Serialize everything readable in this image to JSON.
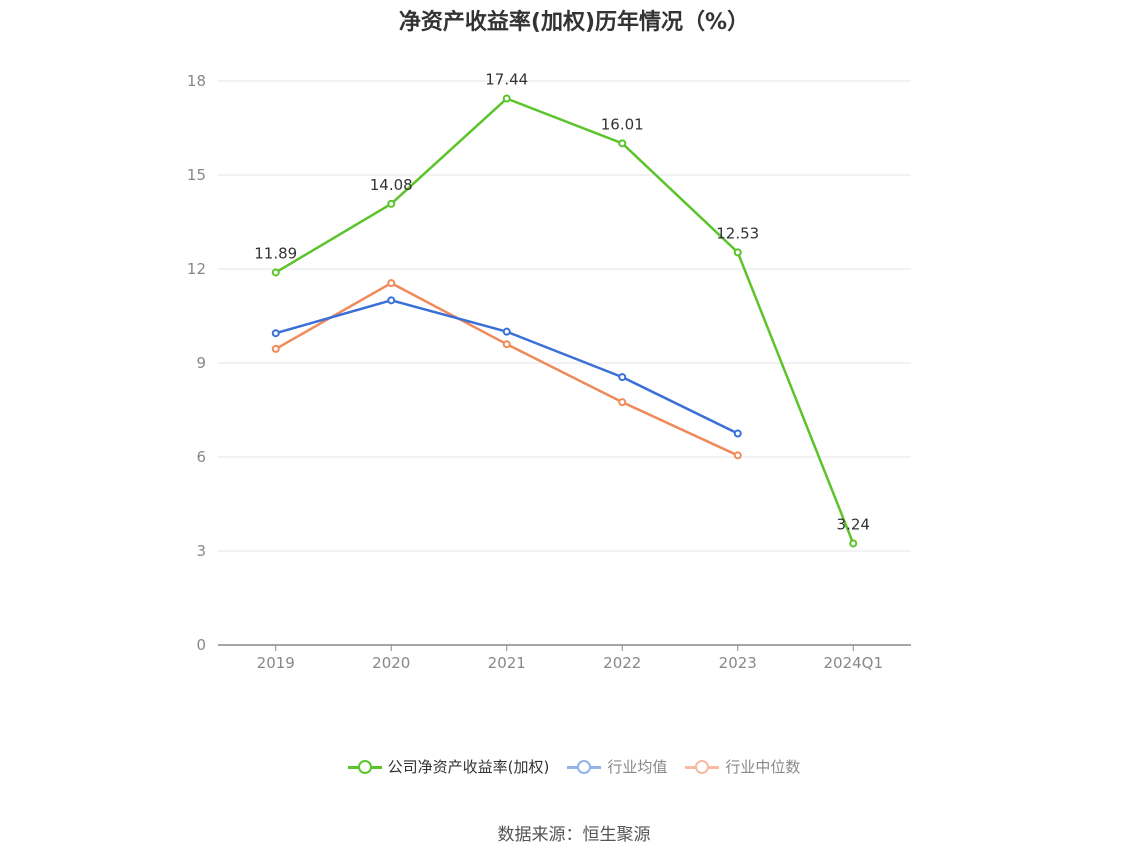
{
  "chart_data": {
    "type": "line",
    "title": "净资产收益率(加权)历年情况（%）",
    "categories": [
      "2019",
      "2020",
      "2021",
      "2022",
      "2023",
      "2024Q1"
    ],
    "ylim": [
      0,
      18
    ],
    "yticks": [
      0,
      3,
      6,
      9,
      12,
      15,
      18
    ],
    "grid": true,
    "legend_position": "bottom",
    "series": [
      {
        "name": "公司净资产收益率(加权)",
        "color": "#5cc42b",
        "values": [
          11.89,
          14.08,
          17.44,
          16.01,
          12.53,
          3.24
        ],
        "labels": [
          "11.89",
          "14.08",
          "17.44",
          "16.01",
          "12.53",
          "3.24"
        ]
      },
      {
        "name": "行业均值",
        "color": "#3b6fd8",
        "legend_color": "#93b4ea",
        "values": [
          9.95,
          11.0,
          10.0,
          8.55,
          6.75,
          null
        ]
      },
      {
        "name": "行业中位数",
        "color": "#f08a5a",
        "legend_color": "#f6bba0",
        "values": [
          9.45,
          11.55,
          9.6,
          7.75,
          6.05,
          null
        ]
      }
    ]
  },
  "source": "数据来源：恒生聚源"
}
